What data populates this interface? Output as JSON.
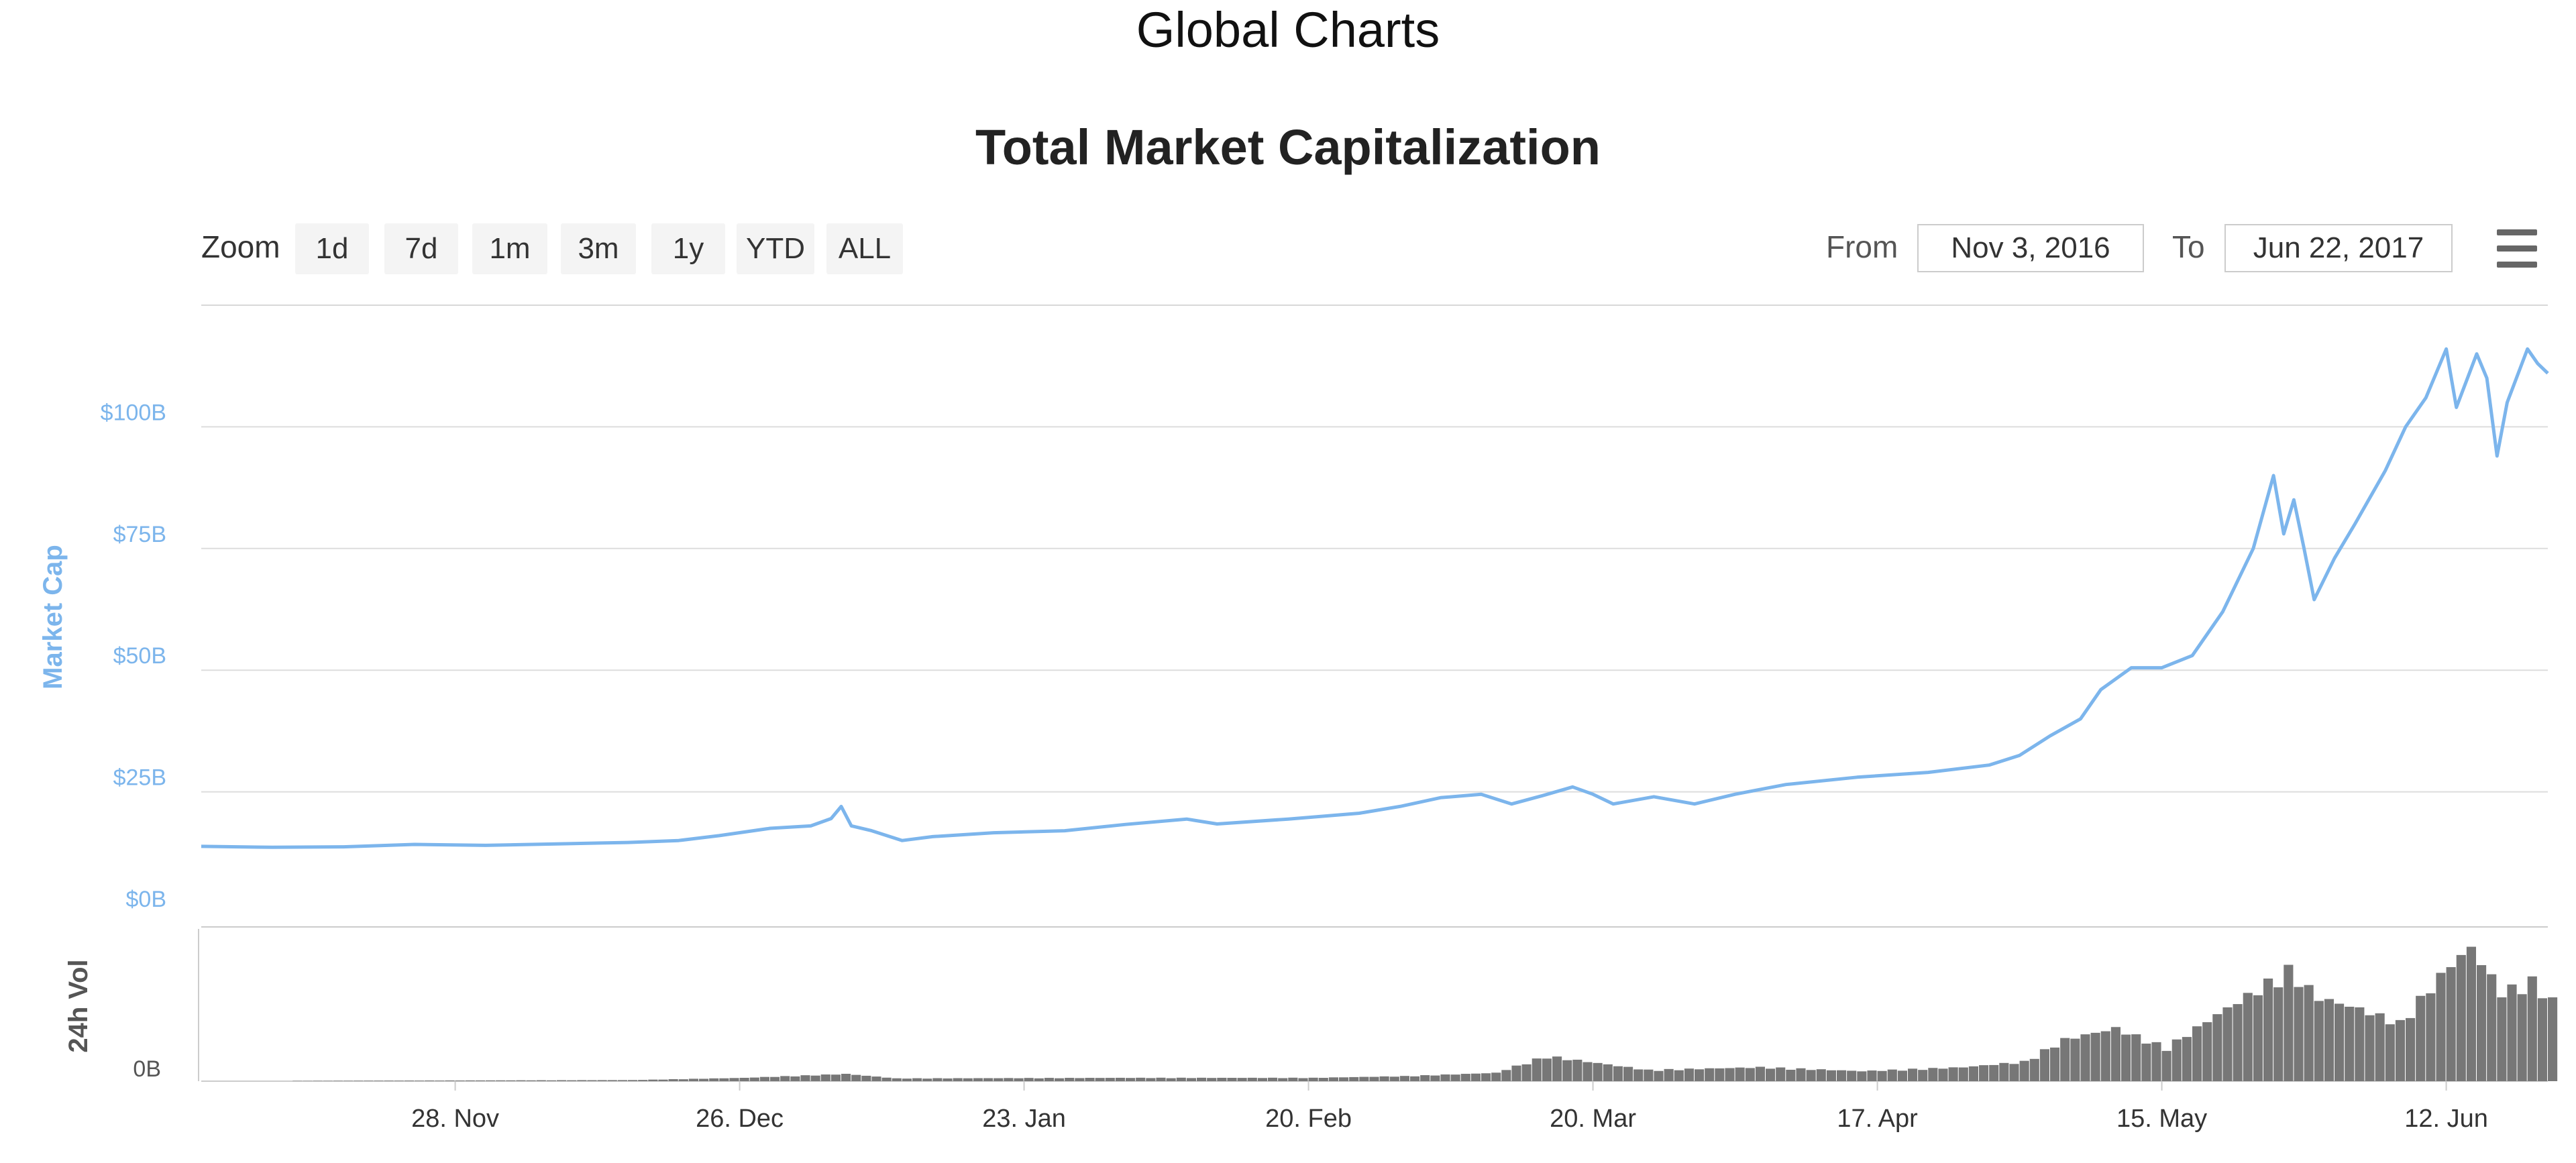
{
  "page_title": "Global Charts",
  "toolbar": {
    "zoom_label": "Zoom",
    "zoom_buttons": [
      "1d",
      "7d",
      "1m",
      "3m",
      "1y",
      "YTD",
      "ALL"
    ],
    "from_label": "From",
    "from_value": "Nov 3, 2016",
    "to_label": "To",
    "to_value": "Jun 22, 2017",
    "menu_icon": "hamburger-menu-icon"
  },
  "chart_data": {
    "type": "line",
    "title": "Total Market Capitalization",
    "xlabel": "",
    "ylabel": "Market Cap",
    "ylim": [
      0,
      125
    ],
    "y_ticks": [
      {
        "value": 0,
        "label": "$0B"
      },
      {
        "value": 25,
        "label": "$25B"
      },
      {
        "value": 50,
        "label": "$50B"
      },
      {
        "value": 75,
        "label": "$75B"
      },
      {
        "value": 100,
        "label": "$100B"
      }
    ],
    "x_range": [
      "2016-11-03",
      "2017-06-22"
    ],
    "x_ticks": [
      {
        "date": "2016-11-28",
        "label": "28. Nov"
      },
      {
        "date": "2016-12-26",
        "label": "26. Dec"
      },
      {
        "date": "2017-01-23",
        "label": "23. Jan"
      },
      {
        "date": "2017-02-20",
        "label": "20. Feb"
      },
      {
        "date": "2017-03-20",
        "label": "20. Mar"
      },
      {
        "date": "2017-04-17",
        "label": "17. Apr"
      },
      {
        "date": "2017-05-15",
        "label": "15. May"
      },
      {
        "date": "2017-06-12",
        "label": "12. Jun"
      }
    ],
    "grid": true,
    "series": [
      {
        "color": "#7cb5ec",
        "points": [
          [
            "2016-11-03",
            13.8
          ],
          [
            "2016-11-10",
            13.6
          ],
          [
            "2016-11-17",
            13.7
          ],
          [
            "2016-11-24",
            14.2
          ],
          [
            "2016-12-01",
            14.0
          ],
          [
            "2016-12-08",
            14.3
          ],
          [
            "2016-12-15",
            14.6
          ],
          [
            "2016-12-20",
            15.0
          ],
          [
            "2016-12-24",
            16.0
          ],
          [
            "2016-12-29",
            17.5
          ],
          [
            "2017-01-02",
            18.0
          ],
          [
            "2017-01-04",
            19.5
          ],
          [
            "2017-01-05",
            22.0
          ],
          [
            "2017-01-06",
            18.0
          ],
          [
            "2017-01-08",
            17.0
          ],
          [
            "2017-01-11",
            15.0
          ],
          [
            "2017-01-14",
            15.8
          ],
          [
            "2017-01-20",
            16.6
          ],
          [
            "2017-01-27",
            17.0
          ],
          [
            "2017-02-02",
            18.3
          ],
          [
            "2017-02-08",
            19.4
          ],
          [
            "2017-02-11",
            18.4
          ],
          [
            "2017-02-18",
            19.4
          ],
          [
            "2017-02-25",
            20.6
          ],
          [
            "2017-03-01",
            22.0
          ],
          [
            "2017-03-05",
            23.8
          ],
          [
            "2017-03-09",
            24.5
          ],
          [
            "2017-03-12",
            22.5
          ],
          [
            "2017-03-15",
            24.2
          ],
          [
            "2017-03-18",
            26.0
          ],
          [
            "2017-03-20",
            24.5
          ],
          [
            "2017-03-22",
            22.5
          ],
          [
            "2017-03-26",
            24.0
          ],
          [
            "2017-03-30",
            22.5
          ],
          [
            "2017-04-03",
            24.5
          ],
          [
            "2017-04-08",
            26.5
          ],
          [
            "2017-04-15",
            28.0
          ],
          [
            "2017-04-22",
            29.0
          ],
          [
            "2017-04-28",
            30.5
          ],
          [
            "2017-05-01",
            32.5
          ],
          [
            "2017-05-04",
            36.5
          ],
          [
            "2017-05-07",
            40.0
          ],
          [
            "2017-05-09",
            46.0
          ],
          [
            "2017-05-12",
            50.5
          ],
          [
            "2017-05-15",
            50.5
          ],
          [
            "2017-05-18",
            53.0
          ],
          [
            "2017-05-21",
            62.0
          ],
          [
            "2017-05-24",
            75.0
          ],
          [
            "2017-05-26",
            90.0
          ],
          [
            "2017-05-27",
            78.0
          ],
          [
            "2017-05-28",
            85.0
          ],
          [
            "2017-05-29",
            75.0
          ],
          [
            "2017-05-30",
            64.5
          ],
          [
            "2017-06-01",
            73.0
          ],
          [
            "2017-06-03",
            80.0
          ],
          [
            "2017-06-06",
            91.0
          ],
          [
            "2017-06-08",
            100.0
          ],
          [
            "2017-06-10",
            106.0
          ],
          [
            "2017-06-12",
            116.0
          ],
          [
            "2017-06-13",
            104.0
          ],
          [
            "2017-06-15",
            115.0
          ],
          [
            "2017-06-16",
            110.0
          ],
          [
            "2017-06-17",
            94.0
          ],
          [
            "2017-06-18",
            105.0
          ],
          [
            "2017-06-20",
            116.0
          ],
          [
            "2017-06-21",
            113.0
          ],
          [
            "2017-06-22",
            111.0
          ]
        ]
      }
    ],
    "volume": {
      "ylabel": "24h Vol",
      "tick_label": "0B",
      "color": "#777777",
      "points": [
        [
          "2016-11-03",
          0.0
        ],
        [
          "2016-11-20",
          0.1
        ],
        [
          "2016-12-15",
          0.2
        ],
        [
          "2016-12-26",
          0.6
        ],
        [
          "2017-01-05",
          1.3
        ],
        [
          "2017-01-10",
          0.5
        ],
        [
          "2017-02-01",
          0.6
        ],
        [
          "2017-02-20",
          0.6
        ],
        [
          "2017-03-01",
          0.9
        ],
        [
          "2017-03-10",
          1.5
        ],
        [
          "2017-03-15",
          4.5
        ],
        [
          "2017-03-25",
          2.0
        ],
        [
          "2017-04-05",
          2.5
        ],
        [
          "2017-04-15",
          1.8
        ],
        [
          "2017-04-25",
          2.5
        ],
        [
          "2017-05-01",
          3.5
        ],
        [
          "2017-05-05",
          7.5
        ],
        [
          "2017-05-10",
          9.5
        ],
        [
          "2017-05-15",
          6.0
        ],
        [
          "2017-05-20",
          12.0
        ],
        [
          "2017-05-24",
          16.5
        ],
        [
          "2017-05-27",
          20.0
        ],
        [
          "2017-05-30",
          15.0
        ],
        [
          "2017-06-03",
          13.0
        ],
        [
          "2017-06-07",
          10.5
        ],
        [
          "2017-06-12",
          21.0
        ],
        [
          "2017-06-14",
          24.0
        ],
        [
          "2017-06-17",
          16.0
        ],
        [
          "2017-06-20",
          18.0
        ],
        [
          "2017-06-22",
          14.5
        ]
      ]
    }
  }
}
